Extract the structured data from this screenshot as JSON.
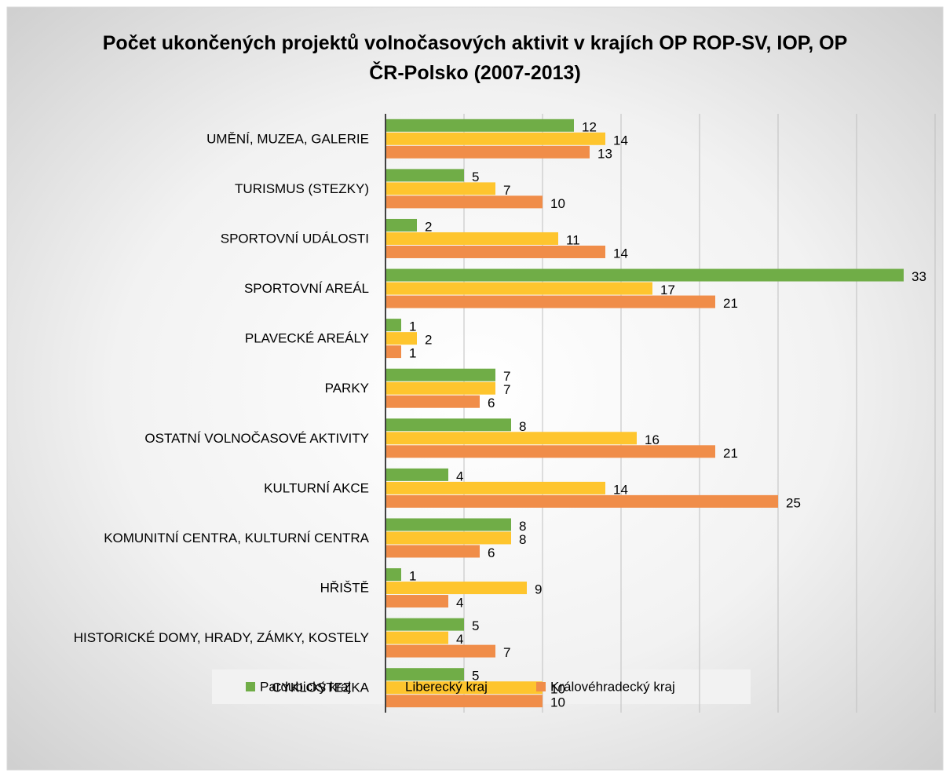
{
  "chart_data": {
    "type": "hbar",
    "title": "Počet ukončených projektů volnočasových aktivit v krajích OP ROP-SV, IOP, OP ČR-Polsko (2007-2013)",
    "categories": [
      "UMĚNÍ, MUZEA, GALERIE",
      "TURISMUS (STEZKY)",
      "SPORTOVNÍ UDÁLOSTI",
      "SPORTOVNÍ AREÁL",
      "PLAVECKÉ AREÁLY",
      "PARKY",
      "OSTATNÍ VOLNOČASOVÉ AKTIVITY",
      "KULTURNÍ AKCE",
      "KOMUNITNÍ CENTRA, KULTURNÍ CENTRA",
      "HŘIŠTĚ",
      "HISTORICKÉ DOMY, HRADY, ZÁMKY, KOSTELY",
      "CYKLOSTEZKA"
    ],
    "series": [
      {
        "name": "Pardubický kraj",
        "color": "#70ad47",
        "values": [
          12,
          5,
          2,
          33,
          1,
          7,
          8,
          4,
          8,
          1,
          5,
          5
        ]
      },
      {
        "name": "Liberecký kraj",
        "color": "#fec52e",
        "values": [
          14,
          7,
          11,
          17,
          2,
          7,
          16,
          14,
          8,
          9,
          4,
          10
        ]
      },
      {
        "name": "Královéhradecký kraj",
        "color": "#f08d49",
        "values": [
          13,
          10,
          14,
          21,
          1,
          6,
          21,
          25,
          6,
          4,
          7,
          10
        ]
      }
    ],
    "xlim": [
      0,
      35
    ],
    "xticks": [
      0,
      5,
      10,
      15,
      20,
      25,
      30,
      35
    ],
    "grid": true,
    "legend": "bottom"
  }
}
